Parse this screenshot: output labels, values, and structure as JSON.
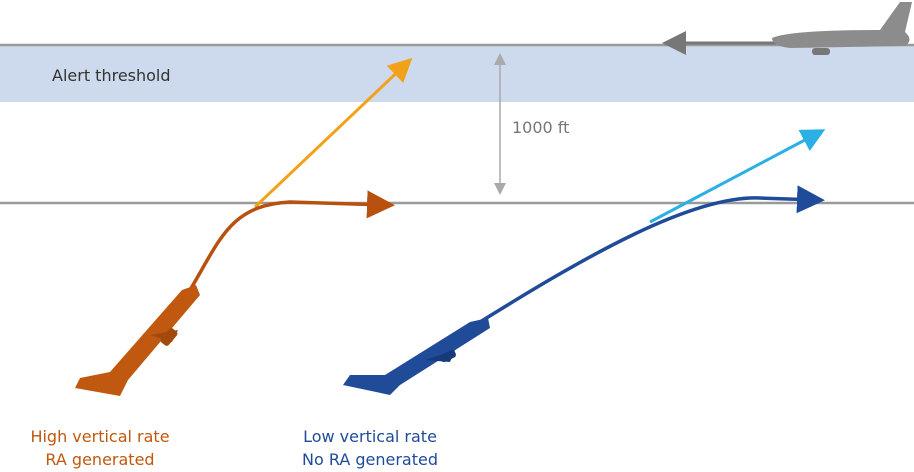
{
  "band": {
    "label": "Alert threshold"
  },
  "separation": {
    "label": "1000 ft"
  },
  "high_rate": {
    "line1": "High vertical rate",
    "line2": "RA generated"
  },
  "low_rate": {
    "line1": "Low vertical rate",
    "line2": "No RA generated"
  }
}
